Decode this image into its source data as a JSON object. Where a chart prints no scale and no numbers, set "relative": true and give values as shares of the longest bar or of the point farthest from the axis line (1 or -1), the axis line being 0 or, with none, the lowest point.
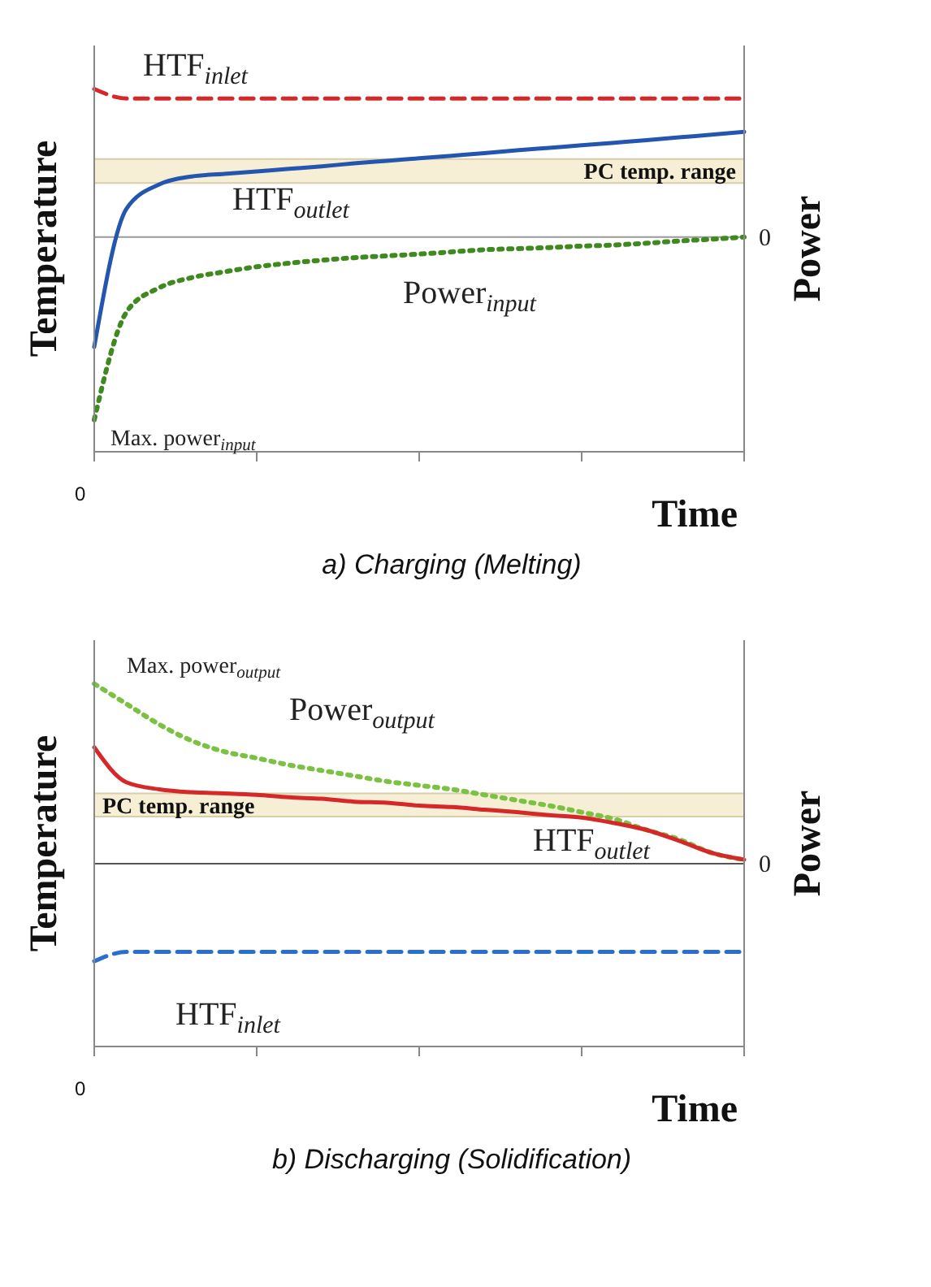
{
  "chart_data": [
    {
      "type": "line",
      "title": "a) Charging (Melting)",
      "xlabel": "Time",
      "ylabel": "Temperature",
      "y2label": "Power",
      "relative": true,
      "legend": false,
      "grid": false,
      "categories": [
        null,
        null,
        null,
        null,
        null,
        null,
        null,
        null,
        null,
        null,
        null,
        null,
        null,
        null,
        null,
        null,
        null,
        null,
        null,
        null,
        null
      ],
      "series": [
        {
          "name": "HTF$_{inlet}$",
          "color": "#d62828",
          "line_style": "dashed",
          "values": [
            1,
            0.974,
            0.974,
            0.974,
            0.974,
            0.974,
            0.974,
            0.974,
            0.974,
            0.974,
            0.974,
            0.974,
            0.974,
            0.974,
            0.974,
            0.974,
            0.974,
            0.974,
            0.974,
            0.974,
            0.974
          ]
        },
        {
          "name": "HTF$_{outlet}$",
          "color": "#2456b0",
          "line_style": "solid",
          "values": [
            0.289,
            0.671,
            0.737,
            0.759,
            0.766,
            0.773,
            0.78,
            0.787,
            0.795,
            0.802,
            0.809,
            0.816,
            0.823,
            0.831,
            0.838,
            0.845,
            0.852,
            0.859,
            0.867,
            0.874,
            0.882
          ]
        },
        {
          "name": "Power$_{input}$",
          "color": "#3f8a1f",
          "line_style": "dotted",
          "values": [
            0.088,
            0.386,
            0.452,
            0.48,
            0.496,
            0.51,
            0.52,
            0.528,
            0.535,
            0.54,
            0.545,
            0.551,
            0.557,
            0.56,
            0.563,
            0.567,
            0.57,
            0.575,
            0.581,
            0.586,
            0.592
          ]
        }
      ],
      "bands": [
        {
          "axis": "y",
          "from": 0.741,
          "to": 0.807,
          "label": "PC temp. range",
          "color": "#f6efd6"
        }
      ],
      "ref_lines": [
        {
          "axis": "y",
          "value": 0.592,
          "color": "#999999"
        }
      ],
      "annotations": [
        "0",
        "Max. power$_{input}$",
        "0"
      ]
    },
    {
      "type": "line",
      "title": "b) Discharging (Solidification)",
      "xlabel": "Time",
      "ylabel": "Temperature",
      "y2label": "Power",
      "relative": true,
      "legend": false,
      "grid": false,
      "categories": [
        null,
        null,
        null,
        null,
        null,
        null,
        null,
        null,
        null,
        null,
        null,
        null,
        null,
        null,
        null,
        null,
        null,
        null,
        null,
        null,
        null
      ],
      "series": [
        {
          "name": "Power$_{output}$",
          "color": "#7cc242",
          "line_style": "dotted",
          "values": [
            1,
            0.944,
            0.888,
            0.843,
            0.813,
            0.795,
            0.776,
            0.761,
            0.746,
            0.731,
            0.72,
            0.709,
            0.694,
            0.679,
            0.664,
            0.646,
            0.627,
            0.597,
            0.571,
            0.534,
            0.515
          ]
        },
        {
          "name": "HTF$_{outlet}$",
          "color": "#d62828",
          "line_style": "solid",
          "values": [
            0.825,
            0.728,
            0.709,
            0.701,
            0.698,
            0.694,
            0.687,
            0.683,
            0.675,
            0.672,
            0.664,
            0.66,
            0.653,
            0.646,
            0.638,
            0.631,
            0.616,
            0.597,
            0.567,
            0.534,
            0.515
          ]
        },
        {
          "name": "HTF$_{inlet}$",
          "color": "#2a6fd0",
          "line_style": "dashed",
          "values": [
            0.235,
            0.261,
            0.261,
            0.261,
            0.261,
            0.261,
            0.261,
            0.261,
            0.261,
            0.261,
            0.261,
            0.261,
            0.261,
            0.261,
            0.261,
            0.261,
            0.261,
            0.261,
            0.261,
            0.261,
            0.261
          ]
        }
      ],
      "bands": [
        {
          "axis": "y",
          "from": 0.634,
          "to": 0.698,
          "label": "PC temp. range",
          "color": "#f6efd6"
        }
      ],
      "ref_lines": [
        {
          "axis": "y",
          "value": 0.504,
          "color": "#555555"
        }
      ],
      "annotations": [
        "0",
        "Max. power$_{output}$",
        "0"
      ]
    }
  ]
}
